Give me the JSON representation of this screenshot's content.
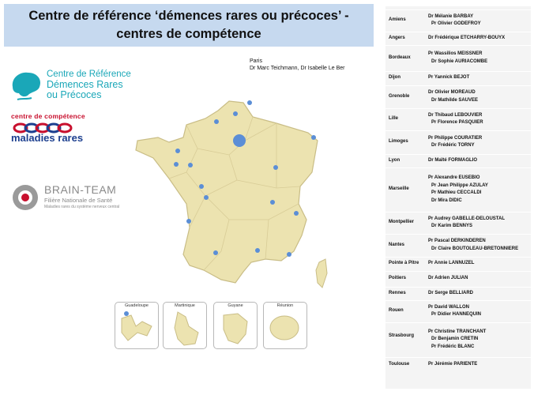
{
  "title": {
    "line1": "Centre de référence ‘démences rares ou précoces’ -",
    "line2": "centres de compétence"
  },
  "logos": {
    "centre_reference": [
      "Centre de Référence",
      "Démences Rares",
      "ou Précoces"
    ],
    "centre_competence_top": "centre de compétence",
    "centre_competence_bottom": "maladies rares",
    "brain_team_name": "BRAIN-TEAM",
    "brain_team_sub1": "Filière Nationale de Santé",
    "brain_team_sub2": "Maladies rares du système nerveux central"
  },
  "paris": {
    "city": "Paris",
    "doctors": "Dr Marc Teichmann, Dr Isabelle Le Ber"
  },
  "overseas": [
    "Guadeloupe",
    "Martinique",
    "Guyane",
    "Réunion"
  ],
  "colors": {
    "banner": "#c6d9ef",
    "land": "#ece3b0",
    "border": "#c9bd86",
    "marker": "#5b8ed6",
    "table_bg": "#f4f4f4"
  },
  "centres": [
    {
      "city": "Amiens",
      "doctors": [
        "Dr Mélanie BARBAY",
        "Pr Olivier GODEFROY"
      ]
    },
    {
      "city": "Angers",
      "doctors": [
        "Dr Frédérique ETCHARRY-BOUYX"
      ]
    },
    {
      "city": "Bordeaux",
      "doctors": [
        "Pr Wassilios MEISSNER",
        "Dr Sophie AURIACOMBE"
      ]
    },
    {
      "city": "Dijon",
      "doctors": [
        "Pr Yannick BEJOT"
      ]
    },
    {
      "city": "Grenoble",
      "doctors": [
        "Dr Olivier MOREAUD",
        "Dr Mathilde SAUVEE"
      ]
    },
    {
      "city": "Lille",
      "doctors": [
        "Dr Thibaud LEBOUVIER",
        "Pr Florence PASQUIER"
      ]
    },
    {
      "city": "Limoges",
      "doctors": [
        "Pr Philippe COURATIER",
        "Dr Frédéric TORNY"
      ]
    },
    {
      "city": "Lyon",
      "doctors": [
        "Dr Maïté FORMAGLIO"
      ]
    },
    {
      "city": "Marseille",
      "doctors": [
        "Pr Alexandre EUSEBIO",
        "Pr Jean Philippe AZULAY",
        "Pr Mathieu CECCALDI",
        "Dr Mira DIDIC"
      ]
    },
    {
      "city": "Montpellier",
      "doctors": [
        "Pr Audrey GABELLE-DELOUSTAL",
        "Dr Karim BENNYS"
      ]
    },
    {
      "city": "Nantes",
      "doctors": [
        "Pr Pascal DERKINDEREN",
        "Dr Claire BOUTOLEAU-BRETONNIERE"
      ]
    },
    {
      "city": "Pointe à Pitre",
      "doctors": [
        "Pr Annie LANNUZEL"
      ]
    },
    {
      "city": "Poitiers",
      "doctors": [
        "Dr Adrien JULIAN"
      ]
    },
    {
      "city": "Rennes",
      "doctors": [
        "Dr Serge BELLIARD"
      ]
    },
    {
      "city": "Rouen",
      "doctors": [
        "Pr David WALLON",
        "Pr Didier HANNEQUIN"
      ]
    },
    {
      "city": "Strasbourg",
      "doctors": [
        "Pr Christine TRANCHANT",
        "Dr Benjamin CRETIN",
        "Pr Frédéric BLANC"
      ]
    },
    {
      "city": "Toulouse",
      "doctors": [
        "Pr Jérémie PARIENTE"
      ]
    }
  ]
}
